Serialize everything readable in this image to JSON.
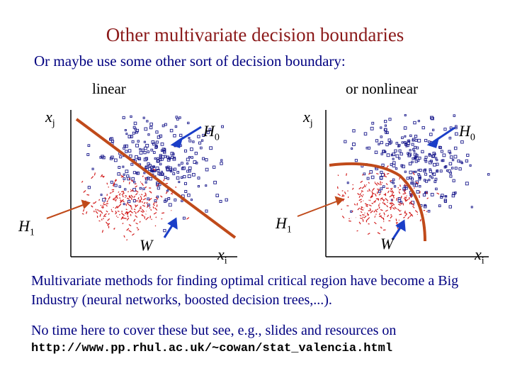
{
  "title": "Other multivariate decision boundaries",
  "subtitle": "Or maybe use some other sort of decision boundary:",
  "panels": {
    "left": {
      "heading": "linear"
    },
    "right": {
      "heading": "or nonlinear"
    }
  },
  "labels": {
    "x_axis": {
      "main": "x",
      "sub": "i"
    },
    "y_axis": {
      "main": "x",
      "sub": "j"
    },
    "h0": {
      "main": "H",
      "sub": "0"
    },
    "h1": {
      "main": "H",
      "sub": "1"
    },
    "w": "W"
  },
  "paragraph": "Multivariate methods for finding optimal critical region have become a Big Industry (neural networks, boosted decision trees,...).",
  "note": "No time here to cover these but see, e.g., slides and resources on",
  "url": "http://www.pp.rhul.ac.uk/~cowan/stat_valencia.html",
  "colors": {
    "title": "#8b1a1a",
    "text": "#000080",
    "h0_points": "#1a1a8c",
    "h1_points": "#d21e1e",
    "boundary": "#c04a1a",
    "arrow": "#1a3ec8"
  }
}
